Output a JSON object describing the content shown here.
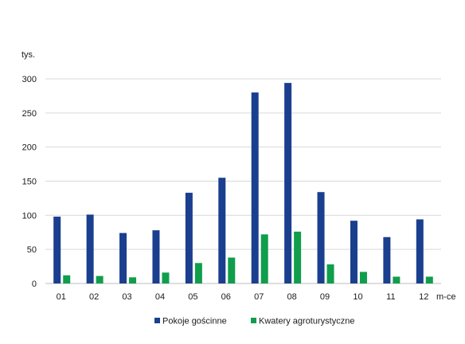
{
  "chart_data": {
    "type": "bar",
    "title": "",
    "ylabel": "tys.",
    "xlabel": "m-ce",
    "ylim": [
      0,
      300
    ],
    "yticks": [
      0,
      50,
      100,
      150,
      200,
      250,
      300
    ],
    "grid": true,
    "legend_position": "bottom-center",
    "categories": [
      "01",
      "02",
      "03",
      "04",
      "05",
      "06",
      "07",
      "08",
      "09",
      "10",
      "11",
      "12"
    ],
    "series": [
      {
        "name": "Pokoje gościnne",
        "color": "#1a3f8f",
        "values": [
          98,
          101,
          74,
          78,
          133,
          155,
          280,
          294,
          134,
          92,
          68,
          94
        ]
      },
      {
        "name": "Kwatery agroturystyczne",
        "color": "#109e4c",
        "values": [
          12,
          11,
          9,
          16,
          30,
          38,
          72,
          76,
          28,
          17,
          10,
          10
        ]
      }
    ]
  }
}
